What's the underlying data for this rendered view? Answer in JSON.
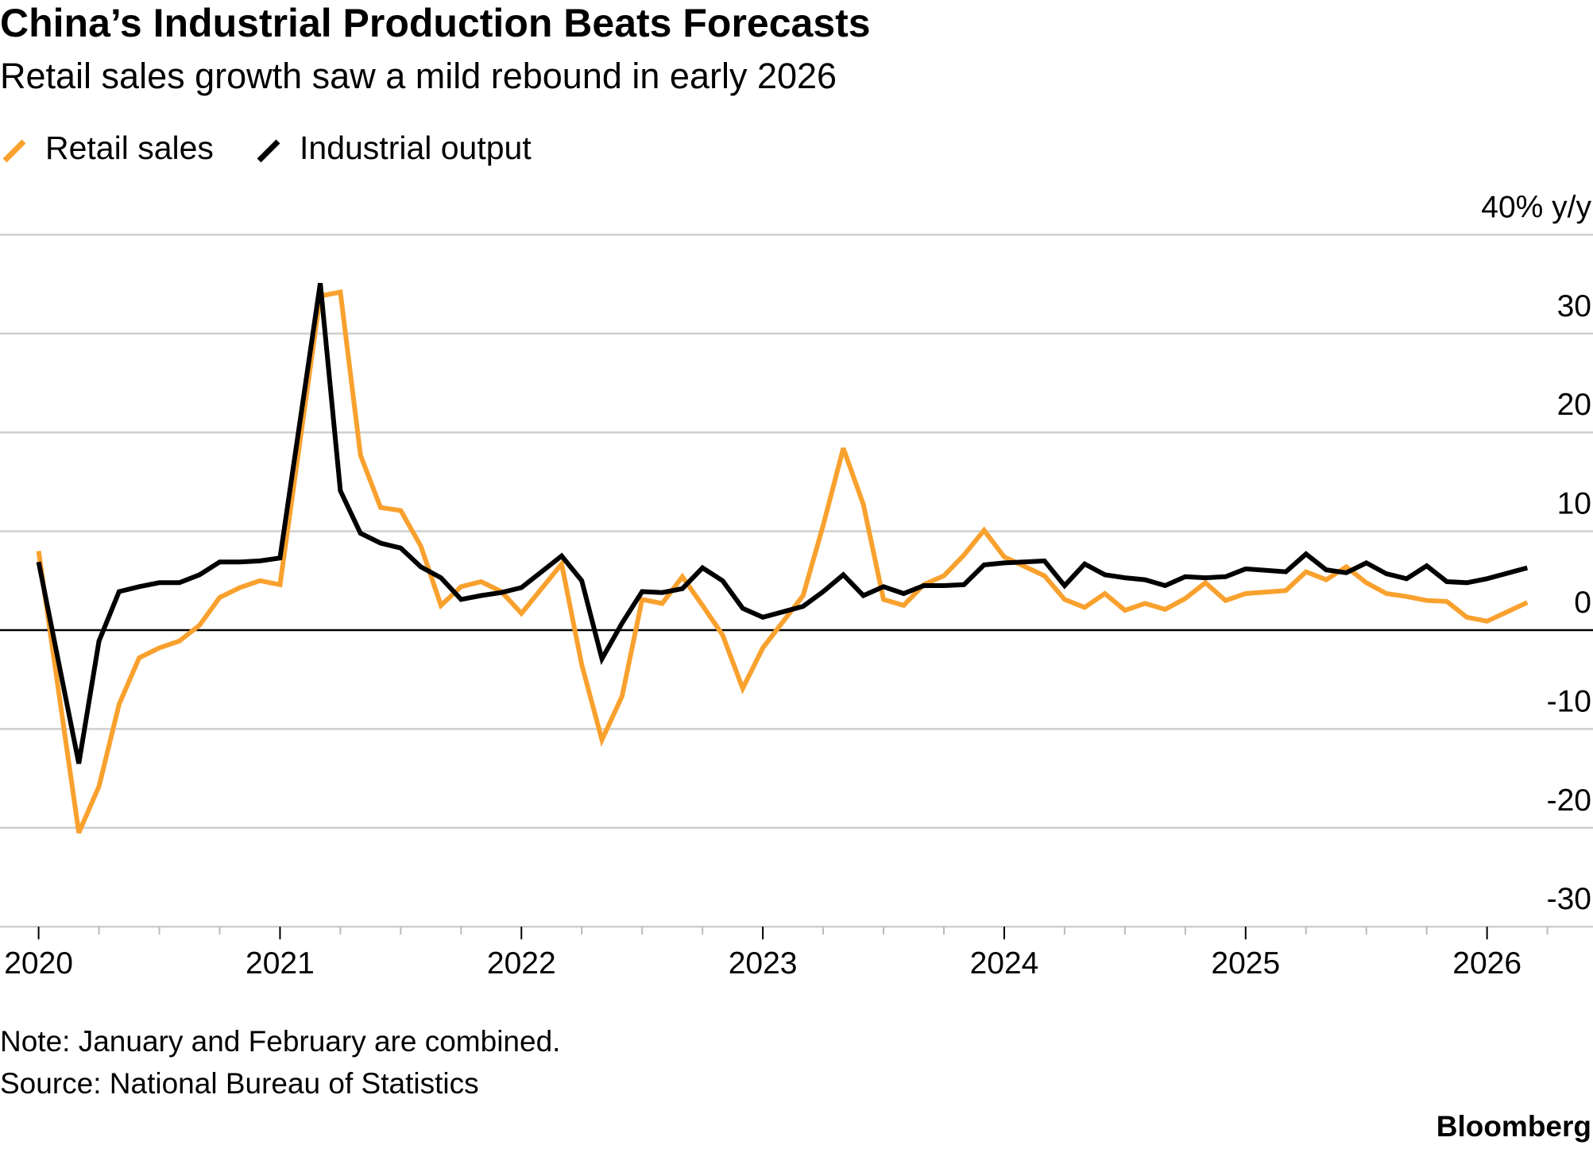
{
  "chart_data": {
    "type": "line",
    "title": "China’s Industrial Production Beats Forecasts",
    "subtitle": "Retail sales growth saw a mild rebound in early 2026",
    "ylabel": "40% y/y",
    "ylim": [
      -30,
      40
    ],
    "yticks": [
      40,
      30,
      20,
      10,
      0,
      -10,
      -20,
      -30
    ],
    "ytick_labels": [
      "40% y/y",
      "30",
      "20",
      "10",
      "0",
      "-10",
      "-20",
      "-30"
    ],
    "xticks": [
      "2020",
      "2021",
      "2022",
      "2023",
      "2024",
      "2025",
      "2026"
    ],
    "grid": true,
    "legend_position": "top-left",
    "series": [
      {
        "name": "Retail sales",
        "color": "#F9A12E",
        "points": [
          [
            "2019-12",
            8.0
          ],
          [
            "2020-02",
            -20.5
          ],
          [
            "2020-03",
            -15.8
          ],
          [
            "2020-04",
            -7.5
          ],
          [
            "2020-05",
            -2.8
          ],
          [
            "2020-06",
            -1.8
          ],
          [
            "2020-07",
            -1.1
          ],
          [
            "2020-08",
            0.5
          ],
          [
            "2020-09",
            3.3
          ],
          [
            "2020-10",
            4.3
          ],
          [
            "2020-11",
            5.0
          ],
          [
            "2020-12",
            4.6
          ],
          [
            "2021-02",
            33.8
          ],
          [
            "2021-03",
            34.2
          ],
          [
            "2021-04",
            17.7
          ],
          [
            "2021-05",
            12.4
          ],
          [
            "2021-06",
            12.1
          ],
          [
            "2021-07",
            8.5
          ],
          [
            "2021-08",
            2.5
          ],
          [
            "2021-09",
            4.4
          ],
          [
            "2021-10",
            4.9
          ],
          [
            "2021-11",
            3.9
          ],
          [
            "2021-12",
            1.7
          ],
          [
            "2022-02",
            6.7
          ],
          [
            "2022-03",
            -3.5
          ],
          [
            "2022-04",
            -11.1
          ],
          [
            "2022-05",
            -6.7
          ],
          [
            "2022-06",
            3.1
          ],
          [
            "2022-07",
            2.7
          ],
          [
            "2022-08",
            5.4
          ],
          [
            "2022-09",
            2.5
          ],
          [
            "2022-10",
            -0.5
          ],
          [
            "2022-11",
            -5.9
          ],
          [
            "2022-12",
            -1.8
          ],
          [
            "2023-02",
            3.5
          ],
          [
            "2023-03",
            10.6
          ],
          [
            "2023-04",
            18.4
          ],
          [
            "2023-05",
            12.7
          ],
          [
            "2023-06",
            3.1
          ],
          [
            "2023-07",
            2.5
          ],
          [
            "2023-08",
            4.6
          ],
          [
            "2023-09",
            5.5
          ],
          [
            "2023-10",
            7.6
          ],
          [
            "2023-11",
            10.1
          ],
          [
            "2023-12",
            7.4
          ],
          [
            "2024-02",
            5.5
          ],
          [
            "2024-03",
            3.1
          ],
          [
            "2024-04",
            2.3
          ],
          [
            "2024-05",
            3.7
          ],
          [
            "2024-06",
            2.0
          ],
          [
            "2024-07",
            2.7
          ],
          [
            "2024-08",
            2.1
          ],
          [
            "2024-09",
            3.2
          ],
          [
            "2024-10",
            4.8
          ],
          [
            "2024-11",
            3.0
          ],
          [
            "2024-12",
            3.7
          ],
          [
            "2025-02",
            4.0
          ],
          [
            "2025-03",
            5.9
          ],
          [
            "2025-04",
            5.1
          ],
          [
            "2025-05",
            6.4
          ],
          [
            "2025-06",
            4.8
          ],
          [
            "2025-07",
            3.7
          ],
          [
            "2025-08",
            3.4
          ],
          [
            "2025-09",
            3.0
          ],
          [
            "2025-10",
            2.9
          ],
          [
            "2025-11",
            1.3
          ],
          [
            "2025-12",
            0.9
          ],
          [
            "2026-02",
            2.8
          ]
        ]
      },
      {
        "name": "Industrial output",
        "color": "#000000",
        "points": [
          [
            "2019-12",
            6.9
          ],
          [
            "2020-02",
            -13.5
          ],
          [
            "2020-03",
            -1.1
          ],
          [
            "2020-04",
            3.9
          ],
          [
            "2020-05",
            4.4
          ],
          [
            "2020-06",
            4.8
          ],
          [
            "2020-07",
            4.8
          ],
          [
            "2020-08",
            5.6
          ],
          [
            "2020-09",
            6.9
          ],
          [
            "2020-10",
            6.9
          ],
          [
            "2020-11",
            7.0
          ],
          [
            "2020-12",
            7.3
          ],
          [
            "2021-02",
            35.1
          ],
          [
            "2021-03",
            14.1
          ],
          [
            "2021-04",
            9.8
          ],
          [
            "2021-05",
            8.8
          ],
          [
            "2021-06",
            8.3
          ],
          [
            "2021-07",
            6.4
          ],
          [
            "2021-08",
            5.3
          ],
          [
            "2021-09",
            3.1
          ],
          [
            "2021-10",
            3.5
          ],
          [
            "2021-11",
            3.8
          ],
          [
            "2021-12",
            4.3
          ],
          [
            "2022-02",
            7.5
          ],
          [
            "2022-03",
            5.0
          ],
          [
            "2022-04",
            -2.9
          ],
          [
            "2022-05",
            0.7
          ],
          [
            "2022-06",
            3.9
          ],
          [
            "2022-07",
            3.8
          ],
          [
            "2022-08",
            4.2
          ],
          [
            "2022-09",
            6.3
          ],
          [
            "2022-10",
            5.0
          ],
          [
            "2022-11",
            2.2
          ],
          [
            "2022-12",
            1.3
          ],
          [
            "2023-02",
            2.4
          ],
          [
            "2023-03",
            3.9
          ],
          [
            "2023-04",
            5.6
          ],
          [
            "2023-05",
            3.5
          ],
          [
            "2023-06",
            4.4
          ],
          [
            "2023-07",
            3.7
          ],
          [
            "2023-08",
            4.5
          ],
          [
            "2023-09",
            4.5
          ],
          [
            "2023-10",
            4.6
          ],
          [
            "2023-11",
            6.6
          ],
          [
            "2023-12",
            6.8
          ],
          [
            "2024-02",
            7.0
          ],
          [
            "2024-03",
            4.5
          ],
          [
            "2024-04",
            6.7
          ],
          [
            "2024-05",
            5.6
          ],
          [
            "2024-06",
            5.3
          ],
          [
            "2024-07",
            5.1
          ],
          [
            "2024-08",
            4.5
          ],
          [
            "2024-09",
            5.4
          ],
          [
            "2024-10",
            5.3
          ],
          [
            "2024-11",
            5.4
          ],
          [
            "2024-12",
            6.2
          ],
          [
            "2025-02",
            5.9
          ],
          [
            "2025-03",
            7.7
          ],
          [
            "2025-04",
            6.1
          ],
          [
            "2025-05",
            5.8
          ],
          [
            "2025-06",
            6.8
          ],
          [
            "2025-07",
            5.7
          ],
          [
            "2025-08",
            5.2
          ],
          [
            "2025-09",
            6.5
          ],
          [
            "2025-10",
            4.9
          ],
          [
            "2025-11",
            4.8
          ],
          [
            "2025-12",
            5.2
          ],
          [
            "2026-02",
            6.3
          ]
        ]
      }
    ],
    "note": "Note: January and February are combined.",
    "source": "Source: National Bureau of Statistics",
    "brand": "Bloomberg"
  }
}
